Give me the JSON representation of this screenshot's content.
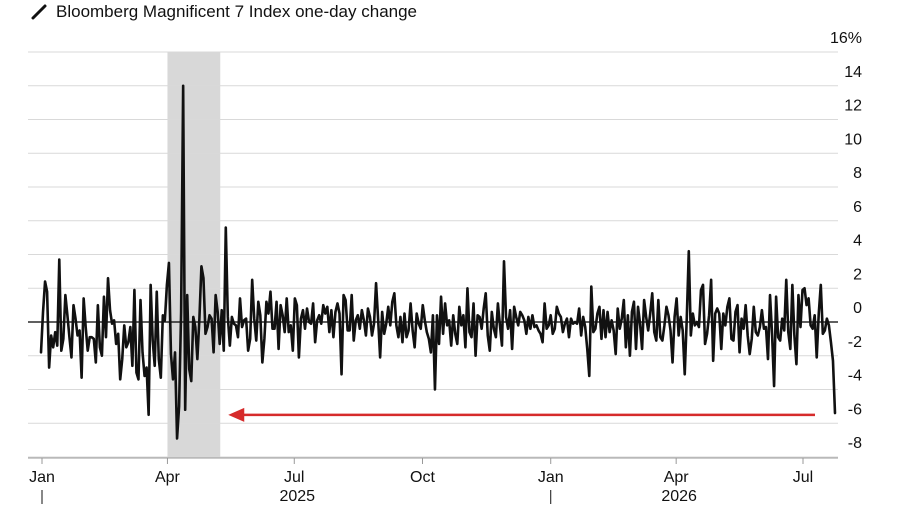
{
  "chart_data": {
    "type": "line",
    "title": "Bloomberg Magnificent 7 Index one-day change",
    "y_unit": "%",
    "ylim": [
      -8,
      16
    ],
    "y_ticks": [
      "16%",
      "14",
      "12",
      "10",
      "8",
      "6",
      "4",
      "2",
      "0",
      "-2",
      "-4",
      "-6",
      "-8"
    ],
    "x_ticks": [
      "Jan",
      "Apr",
      "Jul",
      "Oct",
      "Jan",
      "Apr",
      "Jul"
    ],
    "year_labels": [
      "2025",
      "2026"
    ],
    "grid": true,
    "highlight": {
      "from": "2025-04-01",
      "to": "2025-05-01"
    },
    "arrow": {
      "color": "#d62b2b",
      "y": -5.5
    },
    "x_start": "2025-01-01",
    "series": [
      {
        "color": "#111111",
        "values": [
          -1.8,
          0.6,
          2.4,
          1.8,
          -2.7,
          -0.8,
          -1.5,
          -0.6,
          -1.4,
          3.7,
          -1.7,
          -1.0,
          1.6,
          0.4,
          -0.9,
          -2.1,
          1.0,
          0.2,
          -0.8,
          -0.5,
          -3.3,
          1.4,
          -0.3,
          -1.7,
          -0.9,
          -0.9,
          -1.0,
          -2.4,
          1.0,
          -1.5,
          -2.0,
          1.5,
          -0.9,
          2.6,
          0.7,
          -0.1,
          0.1,
          -1.3,
          -0.7,
          -3.4,
          -2.2,
          -0.2,
          -1.5,
          -1.2,
          -0.3,
          -2.6,
          1.9,
          -3.0,
          -3.4,
          1.3,
          -1.8,
          -3.2,
          -2.7,
          -5.5,
          2.2,
          -1.1,
          -2.6,
          1.8,
          -2.2,
          -3.3,
          0.4,
          0.1,
          2.2,
          3.5,
          -1.9,
          -3.4,
          -1.8,
          -6.9,
          -5.0,
          0.6,
          14.0,
          -5.2,
          1.6,
          -2.8,
          -3.5,
          0.3,
          -0.3,
          -2.2,
          0.2,
          3.3,
          2.6,
          -0.7,
          -0.3,
          0.4,
          0.2,
          -1.8,
          1.6,
          0.6,
          -1.3,
          0.7,
          -1.7,
          5.6,
          0.3,
          -1.4,
          0.3,
          -0.1,
          -0.2,
          -0.9,
          1.4,
          -0.3,
          0.1,
          0.2,
          -1.7,
          -1.0,
          2.5,
          0.2,
          -1.1,
          1.2,
          0.4,
          -2.4,
          -1.0,
          1.2,
          0.5,
          1.8,
          -0.4,
          -0.4,
          1.2,
          -1.6,
          1.0,
          0.4,
          -0.6,
          1.4,
          -0.6,
          -0.2,
          -1.7,
          1.4,
          1.0,
          -2.1,
          0.2,
          0.7,
          -0.4,
          0.8,
          0.0,
          -0.1,
          1.1,
          -1.2,
          0.1,
          0.4,
          -0.1,
          1.0,
          0.5,
          0.9,
          -0.6,
          0.7,
          -0.9,
          0.6,
          1.1,
          0.5,
          -3.1,
          1.6,
          1.3,
          -0.5,
          -0.5,
          1.6,
          -1.1,
          0.1,
          0.4,
          -0.4,
          0.7,
          0.1,
          -0.8,
          0.8,
          0.3,
          -0.8,
          -0.1,
          2.3,
          0.2,
          -2.1,
          0.6,
          -0.7,
          -0.1,
          0.9,
          -0.2,
          1.2,
          1.7,
          -0.2,
          -0.9,
          0.3,
          -1.2,
          0.5,
          -0.9,
          -0.5,
          1.1,
          -0.5,
          -1.5,
          0.5,
          -0.1,
          -0.4,
          1.0,
          0.1,
          -0.6,
          -1.0,
          -1.8,
          0.4,
          -4.0,
          0.4,
          -1.3,
          1.5,
          -0.7,
          1.1,
          -0.2,
          0.1,
          -1.4,
          0.4,
          -0.7,
          -1.3,
          0.9,
          -0.2,
          0.4,
          -1.5,
          2.0,
          -0.6,
          -0.9,
          1.1,
          -2.0,
          0.4,
          0.3,
          -0.4,
          0.8,
          1.7,
          -0.8,
          -1.7,
          0.6,
          -0.4,
          -0.9,
          1.1,
          -0.2,
          -1.4,
          3.6,
          0.3,
          -0.4,
          0.7,
          -1.6,
          0.9,
          0.3,
          -0.2,
          0.6,
          0.4,
          0.1,
          -0.7,
          0.3,
          -0.4,
          0.4,
          -0.3,
          -0.2,
          -0.5,
          -0.7,
          -1.2,
          1.1,
          -0.4,
          -0.2,
          0.4,
          -0.7,
          -0.4,
          0.9,
          0.5,
          0.3,
          -0.6,
          -0.1,
          0.2,
          -0.9,
          0.2,
          -0.1,
          0.0,
          -0.1,
          0.8,
          -0.8,
          0.3,
          -0.3,
          -1.6,
          -3.2,
          2.1,
          -0.6,
          -0.4,
          0.5,
          0.9,
          -1.0,
          0.7,
          -0.9,
          0.6,
          -0.6,
          0.1,
          -0.5,
          -1.9,
          0.8,
          -0.4,
          0.2,
          1.3,
          -1.5,
          0.4,
          -2.0,
          0.6,
          1.2,
          -1.6,
          0.9,
          -0.1,
          -1.6,
          1.3,
          0.3,
          -0.5,
          0.5,
          1.7,
          -0.6,
          -1.1,
          1.3,
          -0.9,
          -1.1,
          -0.2,
          0.9,
          0.4,
          -0.5,
          -2.4,
          0.3,
          1.4,
          -0.8,
          0.3,
          -0.5,
          -3.1,
          0.2,
          4.2,
          -0.8,
          0.5,
          -0.2,
          0.0,
          -0.3,
          1.9,
          2.2,
          -1.3,
          -0.7,
          0.4,
          2.5,
          -2.3,
          0.5,
          0.8,
          0.5,
          -1.6,
          0.5,
          -0.2,
          0.9,
          1.4,
          -1.0,
          -1.1,
          0.6,
          1.0,
          -1.8,
          0.2,
          -0.4,
          1.0,
          -0.8,
          -1.9,
          -1.0,
          0.9,
          -0.6,
          -0.8,
          -0.3,
          0.7,
          -0.4,
          -0.3,
          -2.2,
          1.6,
          -0.7,
          -3.8,
          1.5,
          -0.9,
          -1.1,
          0.2,
          -0.5,
          2.5,
          -0.6,
          -1.6,
          2.2,
          -0.8,
          -2.5,
          1.6,
          -0.3,
          1.9,
          2.0,
          1.0,
          1.4,
          -0.2,
          -0.4,
          0.4,
          -2.1,
          0.5,
          2.2,
          -0.7,
          -0.5,
          0.2,
          -0.2,
          -1.2,
          -2.3,
          -5.4
        ]
      }
    ]
  }
}
